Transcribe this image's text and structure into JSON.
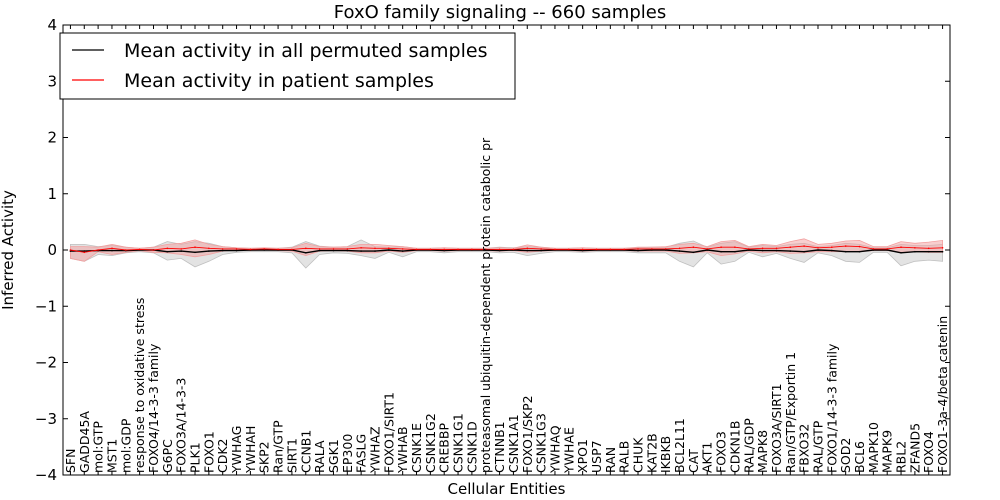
{
  "chart_data": {
    "type": "line",
    "title": "FoxO family signaling -- 660 samples",
    "xlabel": "Cellular Entities",
    "ylabel": "Inferred Activity",
    "ylim": [
      -4,
      4
    ],
    "yticks": [
      4,
      3,
      2,
      1,
      0,
      -1,
      -2,
      -3,
      -4
    ],
    "ytick_labels": [
      "4",
      "3",
      "2",
      "1",
      "0",
      "−1",
      "−2",
      "−3",
      "−4"
    ],
    "legend": {
      "placement": "top-left",
      "entries": [
        {
          "label": "Mean activity in all permuted samples",
          "color": "#000000"
        },
        {
          "label": "Mean activity in patient samples",
          "color": "#ff0000"
        }
      ]
    },
    "categories": [
      "SFN",
      "GADD45A",
      "mol:GTP",
      "MST1",
      "mol:GDP",
      "response to oxidative stress",
      "FOXO4/14-3-3 family",
      "G6PC",
      "FOXO3A/14-3-3",
      "PLK1",
      "FOXO1",
      "CDK2",
      "YWHAG",
      "YWHAH",
      "SKP2",
      "Ran/GTP",
      "SIRT1",
      "CCNB1",
      "RALA",
      "SGK1",
      "EP300",
      "FASLG",
      "YWHAZ",
      "FOXO1/SIRT1",
      "YWHAB",
      "CSNK1E",
      "CSNK1G2",
      "CREBBP",
      "CSNK1G1",
      "CSNK1D",
      "proteasomal ubiquitin-dependent protein catabolic pr",
      "CTNNB1",
      "CSNK1A1",
      "FOXO1/SKP2",
      "CSNK1G3",
      "YWHAQ",
      "YWHAE",
      "XPO1",
      "USP7",
      "RAN",
      "RALB",
      "CHUK",
      "KAT2B",
      "IKBKB",
      "BCL2L11",
      "CAT",
      "AKT1",
      "FOXO3",
      "CDKN1B",
      "RAL/GDP",
      "MAPK8",
      "FOXO3A/SIRT1",
      "Ran/GTP/Exportin 1",
      "FBXO32",
      "RAL/GTP",
      "FOXO1/14-3-3 family",
      "SOD2",
      "BCL6",
      "MAPK10",
      "MAPK9",
      "RBL2",
      "ZFAND5",
      "FOXO4",
      "FOXO1-3a-4/beta catenin"
    ],
    "series": [
      {
        "name": "Mean activity in all permuted samples",
        "color": "#000000",
        "band_color": "#c0c0c0",
        "values": [
          -0.02,
          -0.02,
          -0.01,
          -0.01,
          -0.01,
          0.0,
          0.0,
          -0.03,
          -0.02,
          -0.04,
          -0.02,
          -0.01,
          -0.01,
          0.0,
          0.0,
          0.0,
          0.0,
          -0.05,
          -0.01,
          -0.01,
          -0.01,
          -0.02,
          -0.02,
          0.0,
          -0.02,
          0.0,
          0.0,
          -0.01,
          0.0,
          0.0,
          0.0,
          -0.01,
          0.0,
          -0.01,
          -0.01,
          0.0,
          0.0,
          -0.01,
          0.0,
          0.0,
          0.0,
          -0.01,
          0.0,
          0.0,
          -0.02,
          -0.04,
          0.0,
          -0.03,
          -0.03,
          0.0,
          -0.01,
          -0.01,
          -0.02,
          -0.03,
          0.0,
          -0.01,
          -0.03,
          -0.03,
          0.0,
          0.0,
          -0.05,
          -0.03,
          -0.03,
          -0.03
        ],
        "lower": [
          -0.15,
          -0.2,
          -0.08,
          -0.1,
          -0.05,
          -0.03,
          -0.05,
          -0.18,
          -0.15,
          -0.3,
          -0.2,
          -0.08,
          -0.04,
          -0.03,
          -0.03,
          -0.03,
          -0.05,
          -0.32,
          -0.08,
          -0.05,
          -0.06,
          -0.1,
          -0.15,
          -0.04,
          -0.12,
          -0.03,
          -0.03,
          -0.05,
          -0.03,
          -0.03,
          -0.03,
          -0.05,
          -0.04,
          -0.1,
          -0.06,
          -0.03,
          -0.03,
          -0.04,
          -0.03,
          -0.03,
          -0.03,
          -0.05,
          -0.05,
          -0.05,
          -0.2,
          -0.3,
          -0.05,
          -0.25,
          -0.2,
          -0.04,
          -0.12,
          -0.06,
          -0.15,
          -0.22,
          -0.05,
          -0.1,
          -0.2,
          -0.22,
          -0.04,
          -0.04,
          -0.28,
          -0.2,
          -0.18,
          -0.2
        ],
        "upper": [
          0.1,
          0.1,
          0.06,
          0.08,
          0.05,
          0.03,
          0.05,
          0.15,
          0.1,
          0.15,
          0.12,
          0.06,
          0.04,
          0.03,
          0.03,
          0.03,
          0.05,
          0.15,
          0.07,
          0.05,
          0.06,
          0.18,
          0.06,
          0.05,
          0.06,
          0.03,
          0.03,
          0.04,
          0.03,
          0.03,
          0.03,
          0.05,
          0.04,
          0.06,
          0.05,
          0.03,
          0.03,
          0.04,
          0.03,
          0.03,
          0.03,
          0.04,
          0.05,
          0.05,
          0.12,
          0.16,
          0.05,
          0.12,
          0.15,
          0.05,
          0.08,
          0.06,
          0.1,
          0.12,
          0.06,
          0.08,
          0.12,
          0.1,
          0.04,
          0.04,
          0.1,
          0.08,
          0.08,
          0.1
        ]
      },
      {
        "name": "Mean activity in patient samples",
        "color": "#ff0000",
        "band_color": "#f2a0a0",
        "values": [
          0.0,
          -0.04,
          0.0,
          0.03,
          0.0,
          0.01,
          0.0,
          0.03,
          0.02,
          0.05,
          0.03,
          0.02,
          0.02,
          0.01,
          0.02,
          0.01,
          0.01,
          0.03,
          0.02,
          0.02,
          0.02,
          0.04,
          0.03,
          0.03,
          0.02,
          0.01,
          0.01,
          0.01,
          0.01,
          0.01,
          0.01,
          0.01,
          0.01,
          0.03,
          0.02,
          0.01,
          0.01,
          0.01,
          0.01,
          0.01,
          0.01,
          0.02,
          0.02,
          0.02,
          0.03,
          0.05,
          0.02,
          0.05,
          0.05,
          0.02,
          0.03,
          0.03,
          0.05,
          0.07,
          0.04,
          0.05,
          0.07,
          0.06,
          0.02,
          0.02,
          0.05,
          0.04,
          0.03,
          0.04
        ],
        "lower": [
          -0.15,
          -0.2,
          -0.03,
          -0.08,
          -0.04,
          -0.01,
          -0.04,
          -0.05,
          -0.08,
          -0.12,
          -0.08,
          -0.02,
          0.0,
          -0.01,
          0.0,
          -0.01,
          -0.02,
          -0.1,
          -0.02,
          -0.01,
          -0.02,
          -0.05,
          -0.05,
          -0.02,
          -0.04,
          -0.01,
          -0.01,
          -0.02,
          -0.01,
          -0.01,
          -0.01,
          -0.02,
          -0.01,
          -0.04,
          -0.02,
          -0.01,
          -0.01,
          -0.02,
          -0.01,
          -0.01,
          -0.01,
          -0.02,
          -0.02,
          -0.02,
          -0.06,
          -0.05,
          -0.03,
          -0.1,
          -0.07,
          -0.02,
          -0.05,
          -0.03,
          -0.06,
          -0.05,
          -0.03,
          -0.03,
          -0.03,
          -0.03,
          -0.01,
          -0.01,
          -0.04,
          -0.03,
          -0.04,
          -0.04
        ],
        "upper": [
          0.06,
          0.06,
          0.05,
          0.1,
          0.05,
          0.03,
          0.05,
          0.1,
          0.12,
          0.18,
          0.1,
          0.06,
          0.04,
          0.03,
          0.04,
          0.03,
          0.04,
          0.12,
          0.06,
          0.05,
          0.06,
          0.1,
          0.1,
          0.08,
          0.06,
          0.03,
          0.03,
          0.04,
          0.03,
          0.03,
          0.03,
          0.04,
          0.03,
          0.09,
          0.05,
          0.03,
          0.03,
          0.04,
          0.03,
          0.03,
          0.03,
          0.05,
          0.05,
          0.06,
          0.1,
          0.12,
          0.06,
          0.15,
          0.17,
          0.06,
          0.1,
          0.08,
          0.15,
          0.2,
          0.1,
          0.12,
          0.16,
          0.17,
          0.06,
          0.06,
          0.15,
          0.12,
          0.14,
          0.17
        ]
      }
    ]
  }
}
